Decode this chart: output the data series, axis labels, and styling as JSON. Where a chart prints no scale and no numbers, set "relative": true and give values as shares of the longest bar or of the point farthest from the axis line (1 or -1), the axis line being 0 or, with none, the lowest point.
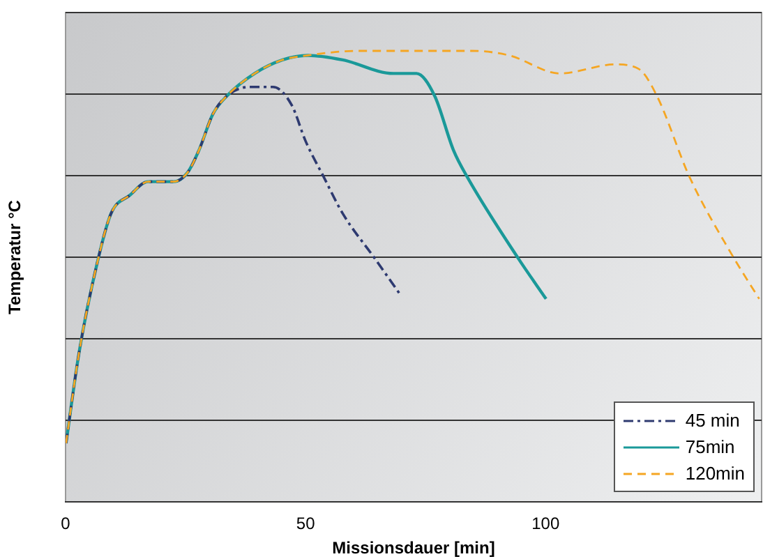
{
  "chart_data": {
    "type": "line",
    "xlabel": "Missionsdauer [min]",
    "ylabel": "Temperatur °C",
    "relative": true,
    "xlim": [
      0,
      145
    ],
    "xticks": [
      0,
      50,
      100
    ],
    "grid": "y",
    "legend": "bottom right",
    "marker": "none",
    "series": [
      {
        "name": "45 min",
        "color": "#2e3a70",
        "line_style": "dashdot",
        "x": [
          0.1,
          2.8,
          6.6,
          9.5,
          13.4,
          17.2,
          22.5,
          25.4,
          27.8,
          30.7,
          33.6,
          38.4,
          43.2,
          47.1,
          50,
          53.8,
          57.7,
          64.4,
          69.7
        ],
        "values": [
          0.13,
          0.33,
          0.53,
          0.64,
          0.68,
          0.71,
          0.71,
          0.73,
          0.78,
          0.86,
          0.9,
          0.92,
          0.92,
          0.88,
          0.8,
          0.72,
          0.64,
          0.54,
          0.46
        ]
      },
      {
        "name": "75min",
        "color": "#1a9999",
        "line_style": "solid",
        "x": [
          0.1,
          2.8,
          6.6,
          9.5,
          13.4,
          17.2,
          22.5,
          25.4,
          27.8,
          30.7,
          33.6,
          39.4,
          45.2,
          50.5,
          57.7,
          68.3,
          73.1,
          76.9,
          80.8,
          83.7,
          94.3,
          100.1
        ],
        "values": [
          0.13,
          0.33,
          0.53,
          0.64,
          0.68,
          0.71,
          0.71,
          0.73,
          0.78,
          0.86,
          0.9,
          0.95,
          0.98,
          0.99,
          0.98,
          0.95,
          0.95,
          0.9,
          0.78,
          0.72,
          0.54,
          0.45
        ]
      },
      {
        "name": "120min",
        "color": "#f5a623",
        "line_style": "dashed",
        "x": [
          0.1,
          2.8,
          6.6,
          9.5,
          13.4,
          17.2,
          22.5,
          25.4,
          27.8,
          30.7,
          33.6,
          39.4,
          45.2,
          50.5,
          60.6,
          72.2,
          84.7,
          92.4,
          103,
          114.5,
          119.4,
          123.2,
          130,
          138.7,
          144.5
        ],
        "values": [
          0.13,
          0.33,
          0.53,
          0.64,
          0.68,
          0.71,
          0.71,
          0.73,
          0.78,
          0.86,
          0.9,
          0.95,
          0.98,
          0.99,
          1,
          1,
          1,
          0.99,
          0.95,
          0.97,
          0.96,
          0.9,
          0.72,
          0.55,
          0.45
        ]
      }
    ]
  }
}
